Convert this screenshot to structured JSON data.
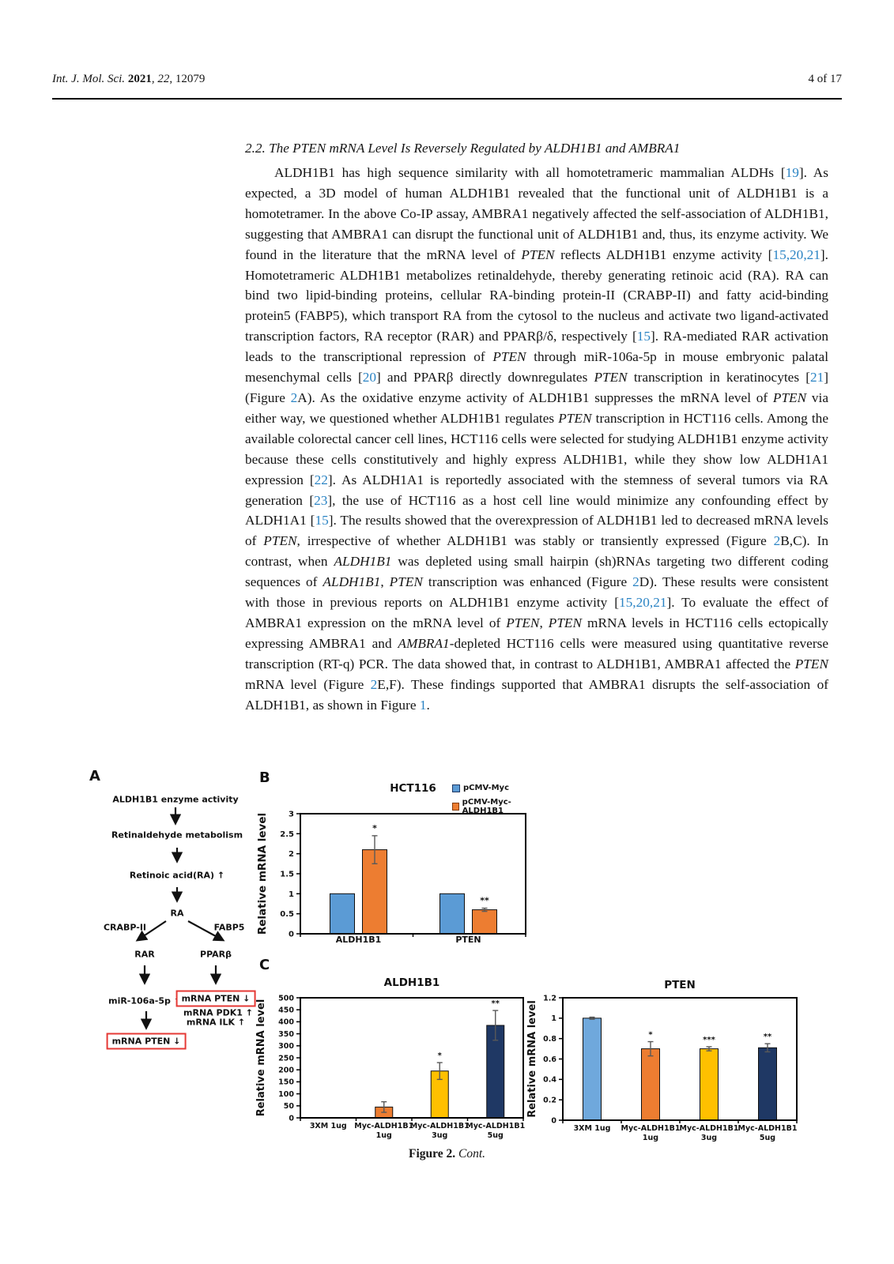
{
  "header": {
    "citation_segments": [
      {
        "t": "Int. J. Mol. Sci. ",
        "s": "i"
      },
      {
        "t": "2021",
        "s": "b"
      },
      {
        "t": ", ",
        "s": ""
      },
      {
        "t": "22",
        "s": "i"
      },
      {
        "t": ", 12079",
        "s": ""
      }
    ],
    "page_indicator": "4 of 17"
  },
  "section": {
    "heading": "2.2. The PTEN mRNA Level Is Reversely Regulated by ALDH1B1 and AMBRA1"
  },
  "paragraph": {
    "segments": [
      {
        "t": "ALDH1B1 has high sequence similarity with all homotetrameric mammalian ALDHs [",
        "s": ""
      },
      {
        "t": "19",
        "s": "r"
      },
      {
        "t": "]. As expected, a 3D model of human ALDH1B1 revealed that the functional unit of ALDH1B1 is a homotetramer. In the above Co-IP assay, AMBRA1 negatively affected the self-association of ALDH1B1, suggesting that AMBRA1 can disrupt the functional unit of ALDH1B1 and, thus, its enzyme activity. We found in the literature that the mRNA level of ",
        "s": ""
      },
      {
        "t": "PTEN",
        "s": "i"
      },
      {
        "t": " reflects ALDH1B1 enzyme activity [",
        "s": ""
      },
      {
        "t": "15,20,21",
        "s": "r"
      },
      {
        "t": "]. Homotetrameric ALDH1B1 metabolizes retinaldehyde, thereby generating retinoic acid (RA). RA can bind two lipid-binding proteins, cellular RA-binding protein-II (CRABP-II) and fatty acid-binding protein5 (FABP5), which transport RA from the cytosol to the nucleus and activate two ligand-activated transcription factors, RA receptor (RAR) and PPARβ/δ, respectively [",
        "s": ""
      },
      {
        "t": "15",
        "s": "r"
      },
      {
        "t": "]. RA-mediated RAR activation leads to the transcriptional repression of ",
        "s": ""
      },
      {
        "t": "PTEN",
        "s": "i"
      },
      {
        "t": " through miR-106a-5p in mouse embryonic palatal mesenchymal cells [",
        "s": ""
      },
      {
        "t": "20",
        "s": "r"
      },
      {
        "t": "] and PPARβ directly downregulates ",
        "s": ""
      },
      {
        "t": "PTEN",
        "s": "i"
      },
      {
        "t": " transcription in keratinocytes [",
        "s": ""
      },
      {
        "t": "21",
        "s": "r"
      },
      {
        "t": "] (Figure ",
        "s": ""
      },
      {
        "t": "2",
        "s": "r"
      },
      {
        "t": "A). As the oxidative enzyme activity of ALDH1B1 suppresses the mRNA level of ",
        "s": ""
      },
      {
        "t": "PTEN",
        "s": "i"
      },
      {
        "t": " via either way, we questioned whether ALDH1B1 regulates ",
        "s": ""
      },
      {
        "t": "PTEN",
        "s": "i"
      },
      {
        "t": " transcription in HCT116 cells. Among the available colorectal cancer cell lines, HCT116 cells were selected for studying ALDH1B1 enzyme activity because these cells constitutively and highly express ALDH1B1, while they show low ALDH1A1 expression [",
        "s": ""
      },
      {
        "t": "22",
        "s": "r"
      },
      {
        "t": "]. As ALDH1A1 is reportedly associated with the stemness of several tumors via RA generation [",
        "s": ""
      },
      {
        "t": "23",
        "s": "r"
      },
      {
        "t": "], the use of HCT116 as a host cell line would minimize any confounding effect by ALDH1A1 [",
        "s": ""
      },
      {
        "t": "15",
        "s": "r"
      },
      {
        "t": "]. The results showed that the overexpression of ALDH1B1 led to decreased mRNA levels of ",
        "s": ""
      },
      {
        "t": "PTEN",
        "s": "i"
      },
      {
        "t": ", irrespective of whether ALDH1B1 was stably or transiently expressed (Figure ",
        "s": ""
      },
      {
        "t": "2",
        "s": "r"
      },
      {
        "t": "B,C). In contrast, when ",
        "s": ""
      },
      {
        "t": "ALDH1B1",
        "s": "i"
      },
      {
        "t": " was depleted using small hairpin (sh)RNAs targeting two different coding sequences of ",
        "s": ""
      },
      {
        "t": "ALDH1B1",
        "s": "i"
      },
      {
        "t": ", ",
        "s": ""
      },
      {
        "t": "PTEN",
        "s": "i"
      },
      {
        "t": " transcription was enhanced (Figure ",
        "s": ""
      },
      {
        "t": "2",
        "s": "r"
      },
      {
        "t": "D). These results were consistent with those in previous reports on ALDH1B1 enzyme activity [",
        "s": ""
      },
      {
        "t": "15,20,21",
        "s": "r"
      },
      {
        "t": "]. To evaluate the effect of AMBRA1 expression on the mRNA level of ",
        "s": ""
      },
      {
        "t": "PTEN",
        "s": "i"
      },
      {
        "t": ", ",
        "s": ""
      },
      {
        "t": "PTEN",
        "s": "i"
      },
      {
        "t": " mRNA levels in HCT116 cells ectopically expressing AMBRA1 and ",
        "s": ""
      },
      {
        "t": "AMBRA1",
        "s": "i"
      },
      {
        "t": "-depleted HCT116 cells were measured using quantitative reverse transcription (RT-q) PCR. The data showed that, in contrast to ALDH1B1, AMBRA1 affected the ",
        "s": ""
      },
      {
        "t": "PTEN",
        "s": "i"
      },
      {
        "t": " mRNA level (Figure ",
        "s": ""
      },
      {
        "t": "2",
        "s": "r"
      },
      {
        "t": "E,F). These findings supported that AMBRA1 disrupts the self-association of ALDH1B1, as shown in Figure ",
        "s": ""
      },
      {
        "t": "1",
        "s": "r"
      },
      {
        "t": ".",
        "s": ""
      }
    ]
  },
  "figure": {
    "panelA": {
      "label": "A",
      "node1": "ALDH1B1 enzyme activity",
      "node2": "Retinaldehyde metabolism",
      "node3": "Retinoic acid(RA) ↑",
      "node4": "RA",
      "branch_left": "CRABP-II",
      "branch_right": "FABP5",
      "receptor_left": "RAR",
      "receptor_right": "PPARβ",
      "mir": "miR-106a-5p ↑",
      "box_right": "mRNA PTEN ↓",
      "pdk1": "mRNA PDK1 ↑",
      "ilk": "mRNA ILK ↑",
      "box_left": "mRNA PTEN ↓"
    },
    "panelB_label": "B",
    "panelC_label": "C",
    "caption_segments": [
      {
        "t": "Figure 2. ",
        "s": "b"
      },
      {
        "t": "Cont.",
        "s": "i"
      }
    ]
  },
  "chart_data": [
    {
      "id": "B",
      "type": "bar",
      "title": "HCT116",
      "xlabel": "",
      "ylabel": "Relative mRNA level",
      "ylim": [
        0,
        3
      ],
      "ytick_step": 0.5,
      "grid": false,
      "legend_position": "top-right",
      "categories": [
        "ALDH1B1",
        "PTEN"
      ],
      "series": [
        {
          "name": "pCMV-Myc",
          "color": "#5B9BD5",
          "values": [
            1.0,
            1.0
          ],
          "errors": [
            0,
            0
          ],
          "sig": [
            "",
            ""
          ]
        },
        {
          "name": "pCMV-Myc-ALDH1B1",
          "color": "#ED7D31",
          "values": [
            2.1,
            0.6
          ],
          "errors": [
            0.35,
            0.04
          ],
          "sig": [
            "*",
            "**"
          ]
        }
      ]
    },
    {
      "id": "C-ALDH1B1",
      "type": "bar",
      "title": "ALDH1B1",
      "xlabel": "",
      "ylabel": "Relative mRNA level",
      "ylim": [
        0,
        500
      ],
      "ytick_step": 50,
      "grid": false,
      "categories": [
        "3XM 1ug",
        "Myc-ALDH1B1 1ug",
        "Myc-ALDH1B1 3ug",
        "Myc-ALDH1B1 5ug"
      ],
      "values": [
        1,
        45,
        195,
        385
      ],
      "errors": [
        0,
        22,
        35,
        62
      ],
      "sig": [
        "",
        "",
        "*",
        "**"
      ],
      "bar_colors": [
        "#5B9BD5",
        "#ED7D31",
        "#FFC000",
        "#1F3864"
      ]
    },
    {
      "id": "C-PTEN",
      "type": "bar",
      "title": "PTEN",
      "xlabel": "",
      "ylabel": "Relative mRNA level",
      "ylim": [
        0,
        1.2
      ],
      "ytick_step": 0.2,
      "grid": false,
      "categories": [
        "3XM 1ug",
        "Myc-ALDH1B1 1ug",
        "Myc-ALDH1B1 3ug",
        "Myc-ALDH1B1 5ug"
      ],
      "values": [
        1.0,
        0.7,
        0.7,
        0.71
      ],
      "errors": [
        0.01,
        0.07,
        0.02,
        0.04
      ],
      "sig": [
        "",
        "*",
        "***",
        "**"
      ],
      "bar_colors": [
        "#6FA8DC",
        "#ED7D31",
        "#FFC000",
        "#1F3864"
      ]
    }
  ],
  "colors": {
    "reference_link": "#2B84C4",
    "highlight_box": "#E53935",
    "error_bar": "#595959",
    "axis": "#000000"
  }
}
